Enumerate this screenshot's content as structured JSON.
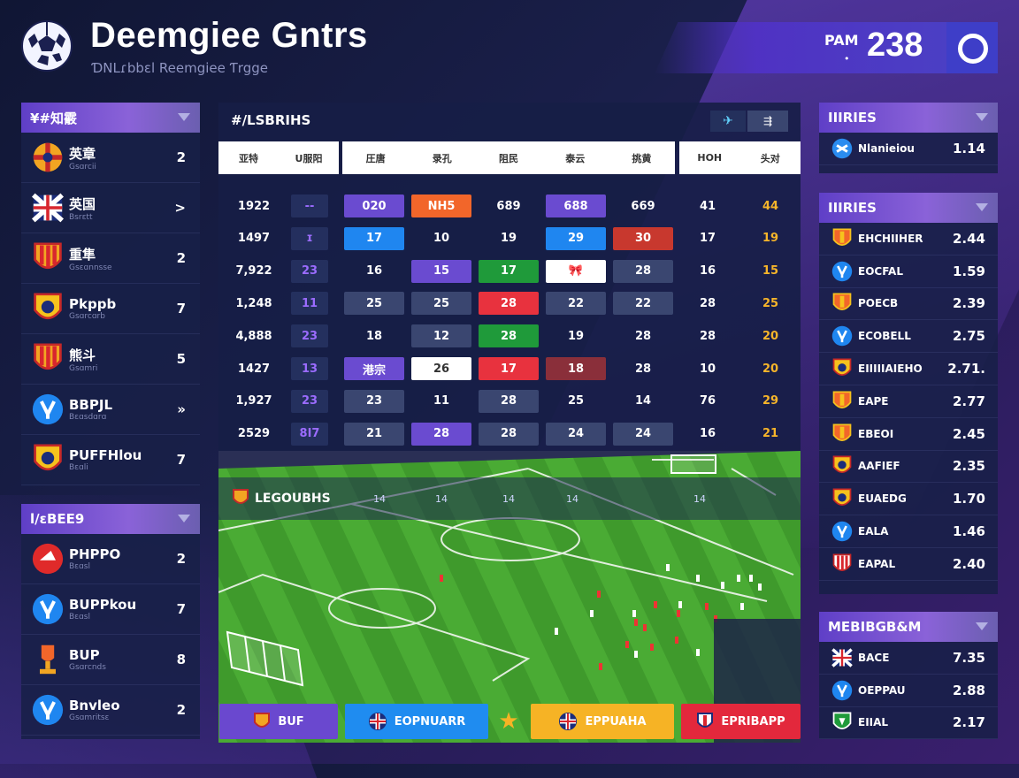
{
  "header": {
    "title": "Deemgiee Gntrs",
    "subtitle": "ƊNLɾbbɛl Reemgiee Ƭrgge",
    "hud_label": "PAM",
    "hud_dot": "•",
    "hud_score": "238"
  },
  "left_panel_top": {
    "title": "¥#知霰",
    "rows": [
      {
        "name": "英章",
        "sub": "Gsɑrcii",
        "value": "2",
        "crest": "red"
      },
      {
        "name": "英国",
        "sub": "Bsrɛtt",
        "value": ">",
        "crest": "uk"
      },
      {
        "name": "重隼",
        "sub": "Gsɛɑnnsse",
        "value": "2",
        "crest": "stripes"
      },
      {
        "name": "Pkppb",
        "sub": "Gsɑrcɑrb",
        "value": "7",
        "crest": "yellow"
      },
      {
        "name": "熊斗",
        "sub": "Gsɑmri",
        "value": "5",
        "crest": "stripes"
      },
      {
        "name": "BBPJL",
        "sub": "Bɛɑsdɑrɑ",
        "value": "»",
        "crest": "blue"
      },
      {
        "name": "PUFFHlou",
        "sub": "Bɛɑli",
        "value": "7",
        "crest": "yellow"
      }
    ]
  },
  "left_panel_bottom": {
    "title": "l/ɛBEE9",
    "rows": [
      {
        "name": "PHPPO",
        "sub": "Bɛɑsl",
        "value": "2",
        "crest": "redball"
      },
      {
        "name": "BUPPkou",
        "sub": "Bɛɑsl",
        "value": "7",
        "crest": "blue"
      },
      {
        "name": "BUP",
        "sub": "Gsɑrcnds",
        "value": "8",
        "crest": "trophy"
      },
      {
        "name": "Bnvleo",
        "sub": "Gsɑmritsɛ",
        "value": "2",
        "crest": "blue"
      }
    ]
  },
  "center_table": {
    "title": "#/LSBRIHS",
    "left_headers": [
      "亚特",
      "U服阳"
    ],
    "mid_headers": [
      "圧唐",
      "录孔",
      "阻民",
      "泰云",
      "挑黄"
    ],
    "right_headers": [
      "HOH",
      "头对"
    ],
    "rows": [
      {
        "id": "1922",
        "a": "--",
        "cells": [
          "020",
          "NH5",
          "689",
          "688",
          "669"
        ],
        "r1": "41",
        "r2": "44"
      },
      {
        "id": "1497",
        "a": "ɪ",
        "cells": [
          "17",
          "10",
          "19",
          "29",
          "30"
        ],
        "r1": "17",
        "r2": "19"
      },
      {
        "id": "7,922",
        "a": "23",
        "cells": [
          "16",
          "15",
          "17",
          "🎀",
          "28"
        ],
        "r1": "16",
        "r2": "15"
      },
      {
        "id": "1,248",
        "a": "11",
        "cells": [
          "25",
          "25",
          "28",
          "22",
          "22"
        ],
        "r1": "28",
        "r2": "25"
      },
      {
        "id": "4,888",
        "a": "23",
        "cells": [
          "18",
          "12",
          "28",
          "19",
          "28"
        ],
        "r1": "28",
        "r2": "20"
      },
      {
        "id": "1427",
        "a": "13",
        "cells": [
          "港宗",
          "26",
          "17",
          "18",
          "28"
        ],
        "r1": "10",
        "r2": "20"
      },
      {
        "id": "1,927",
        "a": "23",
        "cells": [
          "23",
          "11",
          "28",
          "25",
          "14"
        ],
        "r1": "76",
        "r2": "29"
      },
      {
        "id": "2529",
        "a": "8I7",
        "cells": [
          "21",
          "28",
          "28",
          "24",
          "24"
        ],
        "r1": "16",
        "r2": "21"
      }
    ]
  },
  "pitch": {
    "title": "LEGOUBHS",
    "nums": [
      "14",
      "14",
      "14",
      "14",
      "14"
    ]
  },
  "right_panel_top": {
    "title": "IIIRIES",
    "rows": [
      {
        "name": "Nlanieiou",
        "value": "1.14",
        "crest": "blueball"
      }
    ]
  },
  "right_panel_mid": {
    "title": "IIIRIES",
    "rows": [
      {
        "name": "EHCHIIHER",
        "value": "2.44",
        "crest": "orange"
      },
      {
        "name": "EOCFAL",
        "value": "1.59",
        "crest": "blue"
      },
      {
        "name": "POECB",
        "value": "2.39",
        "crest": "orange"
      },
      {
        "name": "ECOBELL",
        "value": "2.75",
        "crest": "blue"
      },
      {
        "name": "EIIIIIAIEHO",
        "value": "2.71.",
        "crest": "yellow"
      },
      {
        "name": "EAPE",
        "value": "2.77",
        "crest": "orange"
      },
      {
        "name": "EBEOI",
        "value": "2.45",
        "crest": "orange"
      },
      {
        "name": "AAFIEF",
        "value": "2.35",
        "crest": "yellow"
      },
      {
        "name": "EUAEDG",
        "value": "1.70",
        "crest": "yellow"
      },
      {
        "name": "EALA",
        "value": "1.46",
        "crest": "blue"
      },
      {
        "name": "EAPAL",
        "value": "2.40",
        "crest": "redstripe"
      }
    ]
  },
  "right_panel_bottom": {
    "title": "MEBIBGB&M",
    "rows": [
      {
        "name": "BACE",
        "value": "7.35",
        "crest": "uk"
      },
      {
        "name": "OEPPAU",
        "value": "2.88",
        "crest": "blue"
      },
      {
        "name": "EIIAL",
        "value": "2.17",
        "crest": "green"
      }
    ]
  },
  "bottom_bar": {
    "buttons": [
      {
        "label": "BUF",
        "color": "#6a48cf"
      },
      {
        "label": "EOPNUARR",
        "color": "#1f8cf0"
      },
      {
        "label": "EPPUAHA",
        "color": "#f6b325"
      },
      {
        "label": "EPRIBAPP",
        "color": "#e3283c"
      }
    ],
    "star": "★"
  },
  "colors": {
    "accent_purple": "#5f3fc7",
    "box_purple": "#6a4bd0",
    "box_orange": "#f2662a",
    "box_blue": "#1f86f0",
    "box_red": "#c8382e",
    "box_green": "#1f9a3a",
    "box_grey": "#3a4670",
    "text_yellow": "#f7b52a"
  }
}
